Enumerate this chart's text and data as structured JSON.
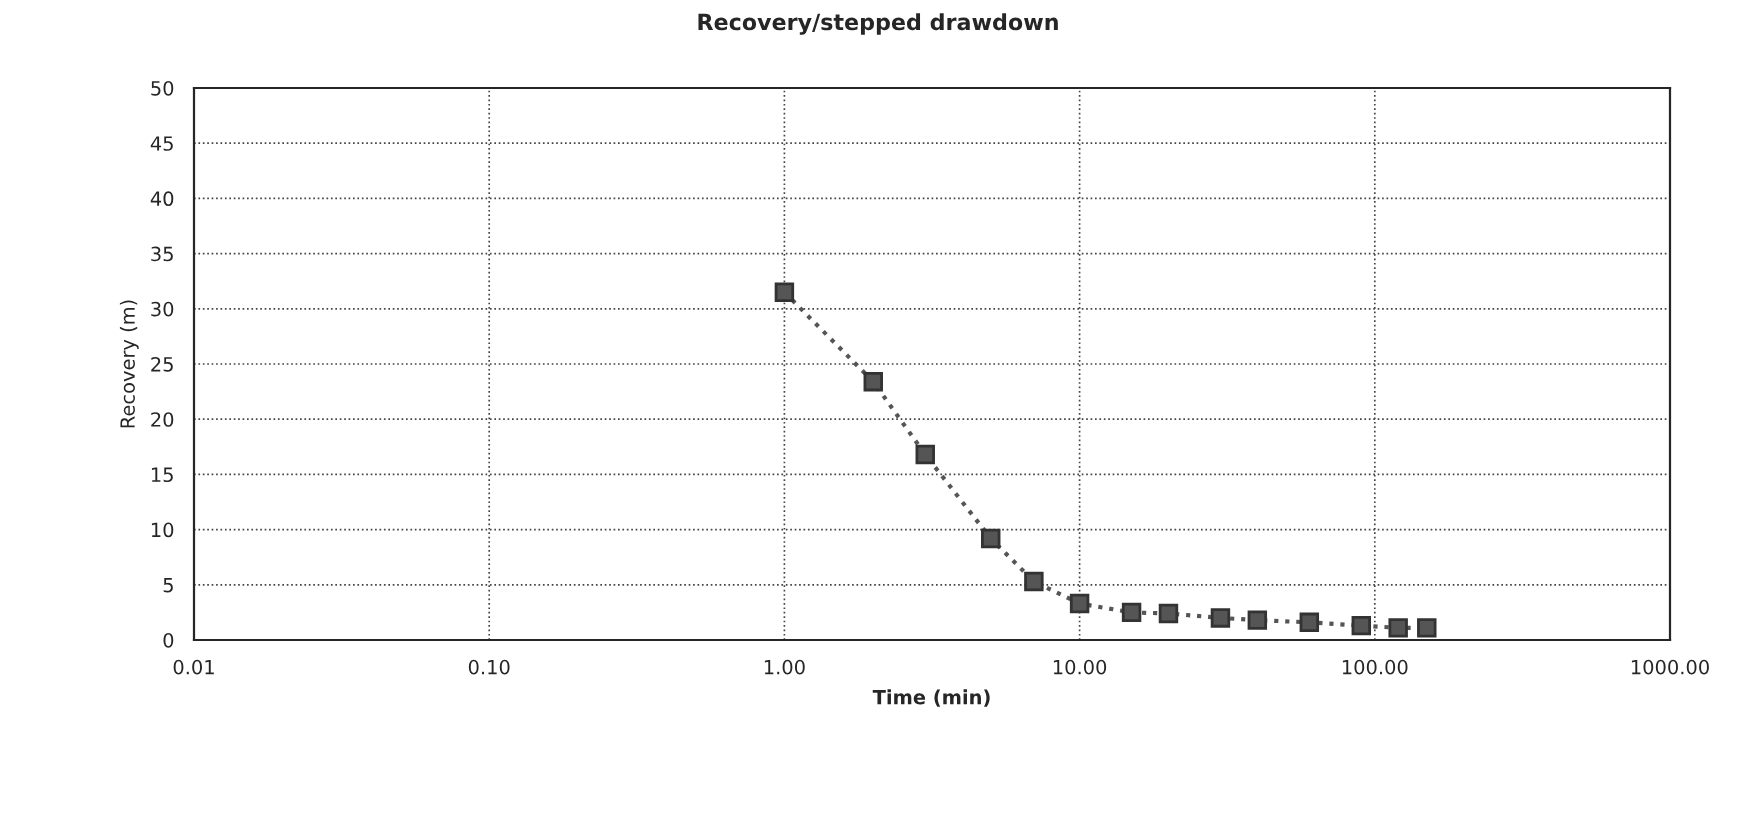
{
  "chart_data": {
    "type": "line",
    "title": "Recovery/stepped drawdown",
    "xlabel": "Time (min)",
    "ylabel": "Recovery (m)",
    "series": [
      {
        "color": "#555555",
        "x": [
          1.0,
          2.0,
          3.0,
          5.0,
          7.0,
          10,
          15,
          20,
          30,
          40,
          60,
          90,
          120,
          150
        ],
        "values": [
          31.5,
          23.4,
          16.8,
          9.2,
          5.3,
          3.3,
          2.5,
          2.4,
          2.0,
          1.8,
          1.6,
          1.3,
          1.1,
          1.1
        ]
      }
    ],
    "log": "x",
    "xlim": [
      0.01,
      1000
    ],
    "xticks": [
      {
        "value": 0.01,
        "label": "0.01"
      },
      {
        "value": 0.1,
        "label": "0.10"
      },
      {
        "value": 1,
        "label": "1.00"
      },
      {
        "value": 10,
        "label": "10.00"
      },
      {
        "value": 100,
        "label": "100.00"
      },
      {
        "value": 1000,
        "label": "1000.00"
      }
    ],
    "ylim": [
      0,
      50
    ],
    "yticks": [
      0,
      5,
      10,
      15,
      20,
      25,
      30,
      35,
      40,
      45,
      50
    ],
    "grid": true,
    "marker": "square",
    "line_style": "dotted"
  }
}
